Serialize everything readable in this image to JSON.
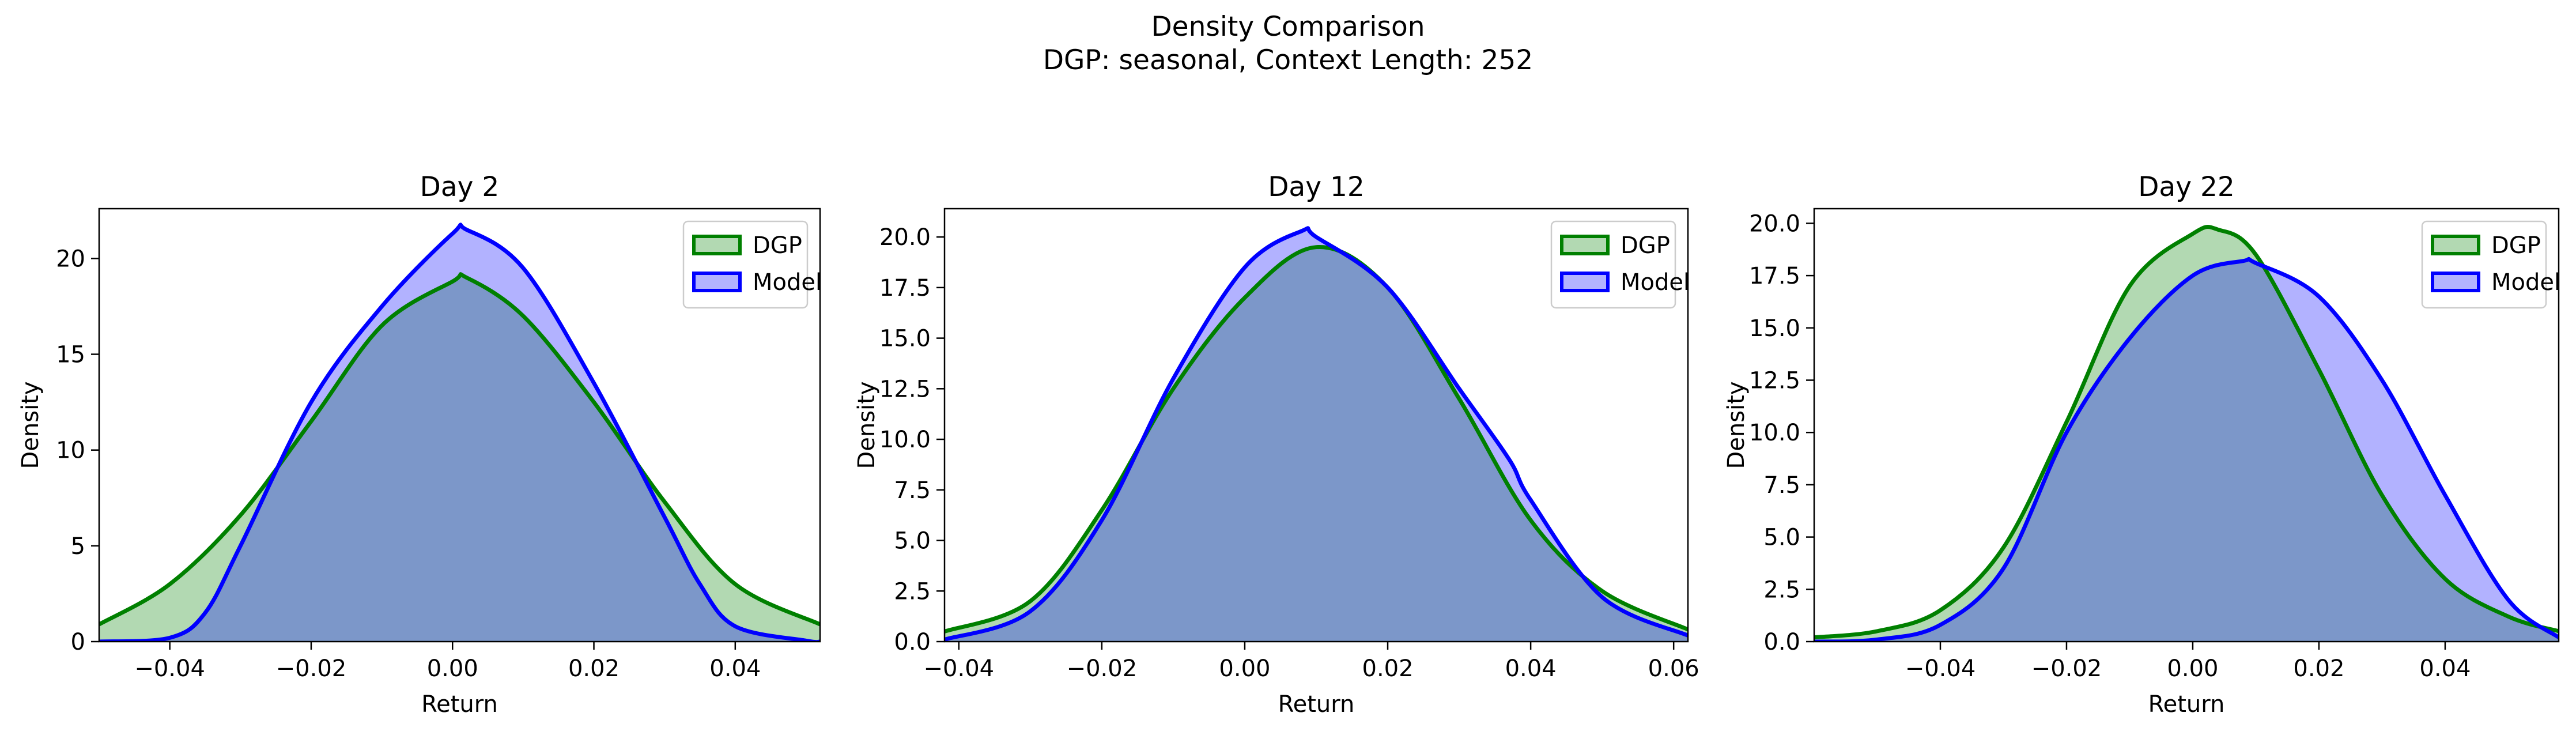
{
  "suptitle": "Density Comparison",
  "subtitle": "DGP: seasonal, Context Length: 252",
  "colors": {
    "dgp_line": "#008000",
    "dgp_fill": "rgba(0,128,0,0.30)",
    "model_line": "#0000ff",
    "model_fill": "rgba(0,0,255,0.30)"
  },
  "chart_data": [
    {
      "type": "area",
      "title": "Day 2",
      "xlabel": "Return",
      "ylabel": "Density",
      "xlim": [
        -0.05,
        0.052
      ],
      "ylim": [
        0,
        22.6
      ],
      "xticks": [
        -0.04,
        -0.02,
        0.0,
        0.02,
        0.04
      ],
      "xtick_labels": [
        "−0.04",
        "−0.02",
        "0.00",
        "0.02",
        "0.04"
      ],
      "yticks": [
        0,
        5,
        10,
        15,
        20
      ],
      "ytick_labels": [
        "0",
        "5",
        "10",
        "15",
        "20"
      ],
      "legend": {
        "position": "top-right",
        "entries": [
          "DGP",
          "Model"
        ]
      },
      "series": [
        {
          "name": "DGP",
          "x": [
            -0.05,
            -0.04,
            -0.03,
            -0.02,
            -0.01,
            0.0,
            0.002,
            0.01,
            0.02,
            0.03,
            0.04,
            0.052
          ],
          "y": [
            0.9,
            3.0,
            6.6,
            11.5,
            16.5,
            18.8,
            19.0,
            17.0,
            12.5,
            7.3,
            3.0,
            0.9
          ]
        },
        {
          "name": "Model",
          "x": [
            -0.05,
            -0.04,
            -0.035,
            -0.03,
            -0.02,
            -0.01,
            0.0,
            0.002,
            0.01,
            0.02,
            0.03,
            0.035,
            0.04,
            0.05,
            0.052
          ],
          "y": [
            0.0,
            0.2,
            1.5,
            5.0,
            12.5,
            17.5,
            21.3,
            21.5,
            19.5,
            13.5,
            6.5,
            3.0,
            0.8,
            0.05,
            0.0
          ]
        }
      ]
    },
    {
      "type": "area",
      "title": "Day 12",
      "xlabel": "Return",
      "ylabel": "Density",
      "xlim": [
        -0.042,
        0.062
      ],
      "ylim": [
        0,
        21.4
      ],
      "xticks": [
        -0.04,
        -0.02,
        0.0,
        0.02,
        0.04,
        0.06
      ],
      "xtick_labels": [
        "−0.04",
        "−0.02",
        "0.00",
        "0.02",
        "0.04",
        "0.06"
      ],
      "yticks": [
        0,
        2.5,
        5,
        7.5,
        10,
        12.5,
        15,
        17.5,
        20
      ],
      "ytick_labels": [
        "0.0",
        "2.5",
        "5.0",
        "7.5",
        "10.0",
        "12.5",
        "15.0",
        "17.5",
        "20.0"
      ],
      "legend": {
        "position": "top-right",
        "entries": [
          "DGP",
          "Model"
        ]
      },
      "series": [
        {
          "name": "DGP",
          "x": [
            -0.042,
            -0.03,
            -0.02,
            -0.01,
            0.0,
            0.01,
            0.02,
            0.03,
            0.04,
            0.05,
            0.062
          ],
          "y": [
            0.5,
            2.0,
            6.5,
            12.5,
            17.0,
            19.5,
            17.5,
            12.0,
            6.0,
            2.5,
            0.6
          ]
        },
        {
          "name": "Model",
          "x": [
            -0.042,
            -0.03,
            -0.02,
            -0.01,
            0.0,
            0.008,
            0.01,
            0.02,
            0.03,
            0.037,
            0.04,
            0.05,
            0.062
          ],
          "y": [
            0.1,
            1.5,
            6.0,
            13.0,
            18.5,
            20.3,
            20.0,
            17.5,
            12.5,
            9.0,
            7.0,
            2.2,
            0.3
          ]
        }
      ]
    },
    {
      "type": "area",
      "title": "Day 22",
      "xlabel": "Return",
      "ylabel": "Density",
      "xlim": [
        -0.06,
        0.058
      ],
      "ylim": [
        0,
        20.7
      ],
      "xticks": [
        -0.04,
        -0.02,
        0.0,
        0.02,
        0.04
      ],
      "xtick_labels": [
        "−0.04",
        "−0.02",
        "0.00",
        "0.02",
        "0.04"
      ],
      "yticks": [
        0,
        2.5,
        5,
        7.5,
        10,
        12.5,
        15,
        17.5,
        20
      ],
      "ytick_labels": [
        "0.0",
        "2.5",
        "5.0",
        "7.5",
        "10.0",
        "12.5",
        "15.0",
        "17.5",
        "20.0"
      ],
      "legend": {
        "position": "top-right",
        "entries": [
          "DGP",
          "Model"
        ]
      },
      "series": [
        {
          "name": "DGP",
          "x": [
            -0.06,
            -0.05,
            -0.04,
            -0.03,
            -0.02,
            -0.01,
            0.0,
            0.004,
            0.01,
            0.02,
            0.03,
            0.04,
            0.05,
            0.058
          ],
          "y": [
            0.2,
            0.5,
            1.5,
            4.5,
            10.5,
            17.0,
            19.5,
            19.7,
            18.5,
            13.0,
            7.0,
            3.0,
            1.2,
            0.5
          ]
        },
        {
          "name": "Model",
          "x": [
            -0.06,
            -0.05,
            -0.04,
            -0.03,
            -0.02,
            -0.01,
            0.0,
            0.008,
            0.01,
            0.02,
            0.03,
            0.04,
            0.05,
            0.058
          ],
          "y": [
            0.0,
            0.1,
            0.8,
            3.5,
            10.0,
            14.5,
            17.5,
            18.2,
            18.1,
            16.5,
            12.5,
            7.0,
            2.0,
            0.2
          ]
        }
      ]
    }
  ]
}
